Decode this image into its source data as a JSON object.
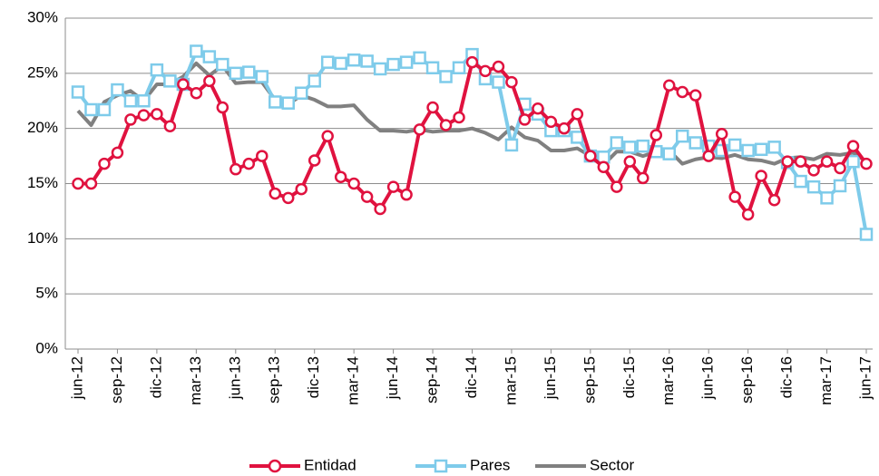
{
  "chart_data": {
    "type": "line",
    "categories": [
      "jun-12",
      null,
      null,
      "sep-12",
      null,
      null,
      "dic-12",
      null,
      null,
      "mar-13",
      null,
      null,
      "jun-13",
      null,
      null,
      "sep-13",
      null,
      null,
      "dic-13",
      null,
      null,
      "mar-14",
      null,
      null,
      "jun-14",
      null,
      null,
      "sep-14",
      null,
      null,
      "dic-14",
      null,
      null,
      "mar-15",
      null,
      null,
      "jun-15",
      null,
      null,
      "sep-15",
      null,
      null,
      "dic-15",
      null,
      null,
      "mar-16",
      null,
      null,
      "jun-16",
      null,
      null,
      "sep-16",
      null,
      null,
      "dic-16",
      null,
      null,
      "mar-17",
      null,
      null,
      "jun-17"
    ],
    "series": [
      {
        "name": "Entidad",
        "color": "#e0123f",
        "marker": "circle",
        "values": [
          15,
          15,
          16.8,
          17.8,
          20.8,
          21.2,
          21.3,
          20.2,
          24,
          23.2,
          24.3,
          21.9,
          16.3,
          16.8,
          17.5,
          14.1,
          13.7,
          14.5,
          17.1,
          19.3,
          15.6,
          15,
          13.8,
          12.7,
          14.7,
          14,
          19.9,
          21.9,
          20.3,
          21,
          26,
          25.2,
          25.6,
          24.2,
          20.8,
          21.8,
          20.6,
          20,
          21.3,
          17.5,
          16.5,
          14.7,
          17,
          15.5,
          19.4,
          23.9,
          23.3,
          23,
          17.5,
          19.5,
          13.8,
          12.2,
          15.7,
          13.5,
          17,
          17,
          16.2,
          17,
          16.4,
          18.4,
          16.8
        ]
      },
      {
        "name": "Pares",
        "color": "#7ecbea",
        "marker": "square",
        "values": [
          23.3,
          21.7,
          21.7,
          23.5,
          22.5,
          22.5,
          25.3,
          24.3,
          24,
          27,
          26.5,
          25.8,
          25,
          25.1,
          24.7,
          22.4,
          22.3,
          23.2,
          24.3,
          26,
          25.9,
          26.2,
          26.1,
          25.4,
          25.8,
          26,
          26.4,
          25.5,
          24.7,
          25.5,
          26.7,
          24.5,
          24.2,
          18.5,
          22.2,
          21.3,
          19.8,
          19.8,
          19.2,
          17.5,
          17.4,
          18.7,
          18.3,
          18.4,
          17.9,
          17.7,
          19.3,
          18.7,
          18.4,
          18,
          18.5,
          18,
          18.1,
          18.3,
          16.9,
          15.2,
          14.7,
          13.7,
          14.8,
          17,
          10.4
        ]
      },
      {
        "name": "Sector",
        "color": "#808080",
        "marker": "none",
        "values": [
          21.6,
          20.3,
          22.4,
          23,
          23.4,
          22.5,
          24,
          24,
          24.7,
          25.9,
          24.8,
          25.7,
          24.1,
          24.2,
          24.2,
          22.6,
          22.2,
          23,
          22.6,
          22,
          22,
          22.1,
          20.8,
          19.8,
          19.8,
          19.7,
          19.9,
          19.7,
          19.8,
          19.8,
          20,
          19.6,
          19,
          20.1,
          19.2,
          18.9,
          18,
          18,
          18.2,
          17.5,
          16.7,
          17.9,
          17.9,
          17.5,
          17.9,
          18,
          16.8,
          17.2,
          17.4,
          17.3,
          17.6,
          17.2,
          17.1,
          16.8,
          17.3,
          17.4,
          17.2,
          17.7,
          17.6,
          17.8,
          17
        ]
      }
    ],
    "ylim": [
      0,
      30
    ],
    "yticks": [
      {
        "value": 0,
        "label": "0%"
      },
      {
        "value": 5,
        "label": "5%"
      },
      {
        "value": 10,
        "label": "10%"
      },
      {
        "value": 15,
        "label": "15%"
      },
      {
        "value": 20,
        "label": "20%"
      },
      {
        "value": 25,
        "label": "25%"
      },
      {
        "value": 30,
        "label": "30%"
      }
    ],
    "grid": true,
    "legend": "bottom"
  }
}
